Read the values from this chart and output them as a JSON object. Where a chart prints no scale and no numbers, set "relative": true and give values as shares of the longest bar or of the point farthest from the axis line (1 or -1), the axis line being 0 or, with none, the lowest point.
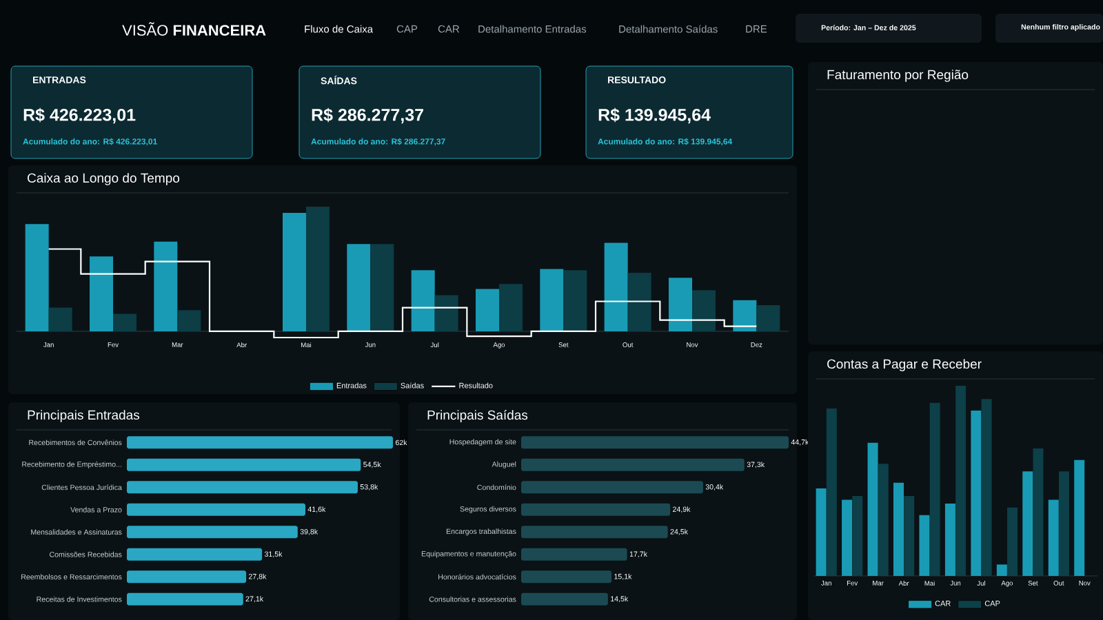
{
  "chart_data": [
    {
      "type": "other",
      "title": "VISÃO **FINANCEIRA**",
      "annotations": [
        "Fluxo de Caixa",
        "CAP",
        "CAR",
        "Detalhamento Entradas",
        "Detalhamento Saídas",
        "DRE",
        "Período: Jan – Dez de 2025",
        "Nenhum filtro aplicado"
      ]
    },
    {
      "type": "other",
      "title": "ENTRADAS",
      "annotations": [
        "R$ 426.223,01",
        "Acumulado do ano: R$ 426.223,01"
      ]
    },
    {
      "type": "other",
      "title": "SAÍDAS",
      "annotations": [
        "R$ 286.277,37",
        "Acumulado do ano: R$ 286.277,37"
      ]
    },
    {
      "type": "other",
      "title": "RESULTADO",
      "annotations": [
        "R$ 139.945,64",
        "Acumulado do ano: R$ 139.945,64"
      ]
    },
    {
      "type": "bar",
      "title": "Caixa ao Longo do Tempo",
      "relative": true,
      "legend": "bottom",
      "categories": [
        "Jan",
        "Fev",
        "Mar",
        "Abr",
        "Mai",
        "Jun",
        "Jul",
        "Ago",
        "Set",
        "Out",
        "Nov",
        "Dez"
      ],
      "series": [
        {
          "name": "Entradas",
          "color": "#1a9bb5",
          "values": [
            0.86,
            0.6,
            0.72,
            0,
            0.95,
            0.7,
            0.49,
            0.34,
            0.5,
            0.71,
            0.43,
            0.25
          ]
        },
        {
          "name": "Saídas",
          "color": "#0d3d45",
          "values": [
            0.19,
            0.14,
            0.17,
            0,
            1,
            0.7,
            0.29,
            0.38,
            0.49,
            0.47,
            0.33,
            0.21
          ]
        },
        {
          "name": "Resultado",
          "type": "step",
          "color": "#ffffff",
          "values": [
            0.66,
            0.46,
            0.56,
            0,
            -0.05,
            0,
            0.19,
            -0.04,
            0,
            0.24,
            0.09,
            0.04
          ]
        }
      ]
    },
    {
      "type": "bar",
      "title": "Principais Entradas",
      "orientation": "horizontal",
      "color": "#2aa7c2",
      "categories": [
        "Recebimentos de Convênios",
        "Recebimento de Empréstimo...",
        "Clientes Pessoa Jurídica",
        "Vendas a Prazo",
        "Mensalidades e Assinaturas",
        "Comissões Recebidas",
        "Reembolsos e Ressarcimentos",
        "Receitas de Investimentos"
      ],
      "values": [
        62,
        54.5,
        53.8,
        41.6,
        39.8,
        31.5,
        27.8,
        27.1
      ],
      "value_labels": [
        "62k",
        "54,5k",
        "53,8k",
        "41,6k",
        "39,8k",
        "31,5k",
        "27,8k",
        "27,1k"
      ]
    },
    {
      "type": "bar",
      "title": "Principais Saídas",
      "orientation": "horizontal",
      "color": "#1b4a52",
      "categories": [
        "Hospedagem de site",
        "Aluguel",
        "Condomínio",
        "Seguros diversos",
        "Encargos trabalhistas",
        "Equipamentos e manutenção",
        "Honorários advocatícios",
        "Consultorias e assessorias"
      ],
      "values": [
        44.7,
        37.3,
        30.4,
        24.9,
        24.5,
        17.7,
        15.1,
        14.5
      ],
      "value_labels": [
        "44,7k",
        "37,3k",
        "30,4k",
        "24,9k",
        "24,5k",
        "17,7k",
        "15,1k",
        "14,5k"
      ]
    },
    {
      "type": "other",
      "title": "Faturamento por Região"
    },
    {
      "type": "bar",
      "title": "Contas a Pagar e Receber",
      "relative": true,
      "legend": "bottom",
      "categories": [
        "Jan",
        "Fev",
        "Mar",
        "Abr",
        "Mai",
        "Jun",
        "Jul",
        "Ago",
        "Set",
        "Out",
        "Nov"
      ],
      "series": [
        {
          "name": "CAR",
          "color": "#1a9bb5",
          "values": [
            0.46,
            0.4,
            0.7,
            0.49,
            0.32,
            0.38,
            0.87,
            0.06,
            0.55,
            0.4,
            0.61
          ]
        },
        {
          "name": "CAP",
          "color": "#0d4048",
          "values": [
            0.88,
            0.42,
            0.59,
            0.42,
            0.91,
            1,
            0.93,
            0.36,
            0.67,
            0.55,
            null
          ]
        }
      ]
    }
  ]
}
